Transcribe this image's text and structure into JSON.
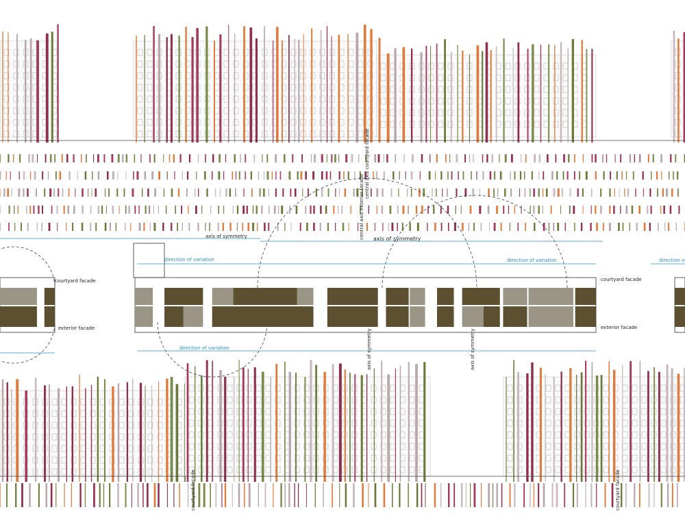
{
  "annotations": [
    "axis of symmetry",
    "axis of symmetry",
    "courtyard facade",
    "courtyard facade",
    "exterior facade",
    "exterior facade",
    "direction of variation",
    "direction of variation",
    "direction of variation",
    "direction of variation",
    "central axis courtyard facade",
    "central axis exterior facade",
    "axis of symmetry",
    "axis of symmetry",
    "courtyard facade",
    "courtyard facade"
  ]
}
